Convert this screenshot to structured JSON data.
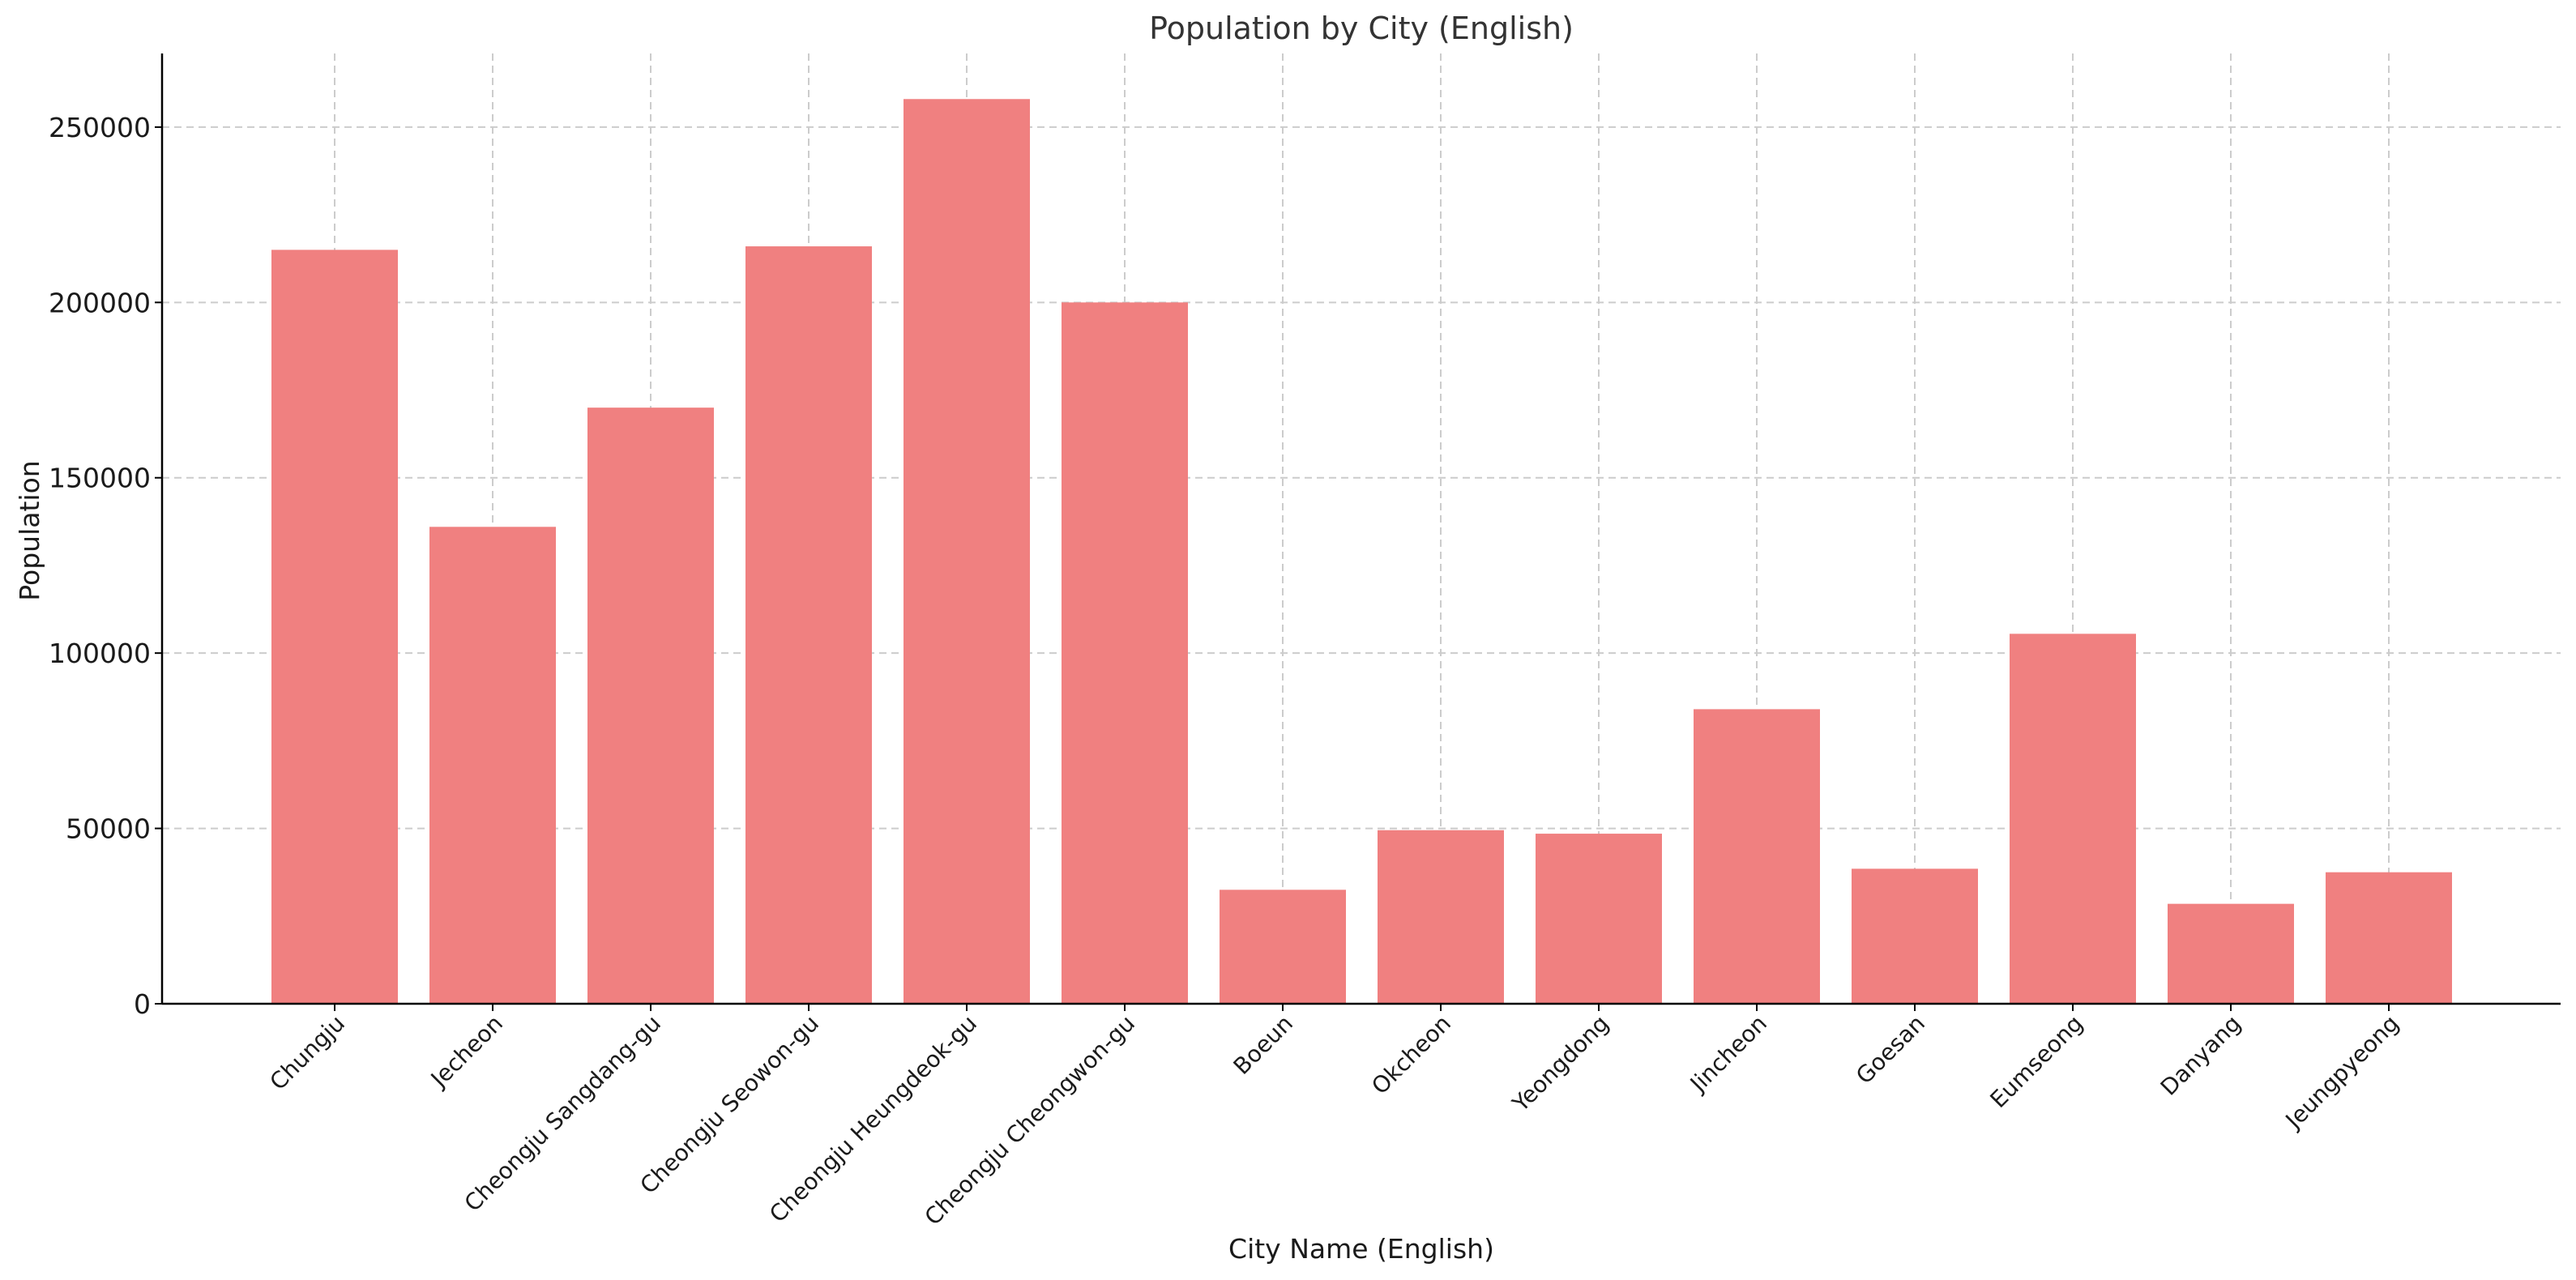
{
  "chart_data": {
    "type": "bar",
    "title": "Population by City (English)",
    "xlabel": "City Name (English)",
    "ylabel": "Population",
    "categories": [
      "Chungju",
      "Jecheon",
      "Cheongju Sangdang-gu",
      "Cheongju Seowon-gu",
      "Cheongju Heungdeok-gu",
      "Cheongju Cheongwon-gu",
      "Boeun",
      "Okcheon",
      "Yeongdong",
      "Jincheon",
      "Goesan",
      "Eumseong",
      "Danyang",
      "Jeungpyeong"
    ],
    "values": [
      215000,
      136000,
      170000,
      216000,
      258000,
      200000,
      32500,
      49500,
      48500,
      84000,
      38500,
      105500,
      28500,
      37500
    ],
    "ylim": [
      0,
      271000
    ],
    "yticks": [
      0,
      50000,
      100000,
      150000,
      200000,
      250000
    ],
    "grid": true,
    "bar_color": "#f08080",
    "legend": "none"
  }
}
